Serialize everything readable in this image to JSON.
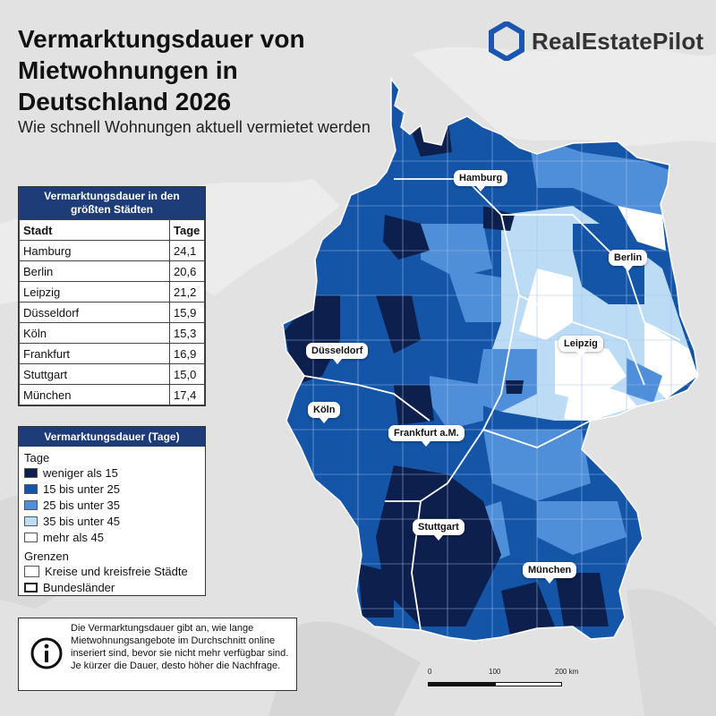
{
  "title": "Vermarktungsdauer von Mietwohnungen in Deutschland 2026",
  "subtitle": "Wie schnell Wohnungen aktuell vermietet werden",
  "brand": {
    "name": "RealEstatePilot",
    "icon": "hexagon-logo-icon",
    "color": "#1a56b0"
  },
  "table": {
    "title": "Vermarktungsdauer in den größten Städten",
    "headers": [
      "Stadt",
      "Tage"
    ],
    "rows": [
      [
        "Hamburg",
        "24,1"
      ],
      [
        "Berlin",
        "20,6"
      ],
      [
        "Leipzig",
        "21,2"
      ],
      [
        "Düsseldorf",
        "15,9"
      ],
      [
        "Köln",
        "15,3"
      ],
      [
        "Frankfurt",
        "16,9"
      ],
      [
        "Stuttgart",
        "15,0"
      ],
      [
        "München",
        "17,4"
      ]
    ]
  },
  "legend": {
    "title": "Vermarktungsdauer (Tage)",
    "section_classes": "Tage",
    "classes": [
      {
        "label": "weniger als 15",
        "color": "#0c1f4d"
      },
      {
        "label": "15 bis unter 25",
        "color": "#1455a8"
      },
      {
        "label": "25 bis unter 35",
        "color": "#4f8fd9"
      },
      {
        "label": "35 bis unter 45",
        "color": "#bcdcf6"
      },
      {
        "label": "mehr als 45",
        "color": "#ffffff"
      }
    ],
    "section_borders": "Grenzen",
    "borders": [
      "Kreise und kreisfreie Städte",
      "Bundesländer"
    ]
  },
  "info": {
    "icon": "info-icon",
    "text": "Die Vermarktungsdauer gibt an, wie lange Mietwohnungsangebote im Durchschnitt online inseriert sind, bevor sie nicht mehr verfügbar sind. Je kürzer die Dauer, desto höher die Nachfrage."
  },
  "cities": [
    "Hamburg",
    "Berlin",
    "Leipzig",
    "Düsseldorf",
    "Köln",
    "Frankfurt a.M.",
    "Stuttgart",
    "München"
  ],
  "scalebar": {
    "labels": [
      "0",
      "100",
      "200 km"
    ]
  }
}
